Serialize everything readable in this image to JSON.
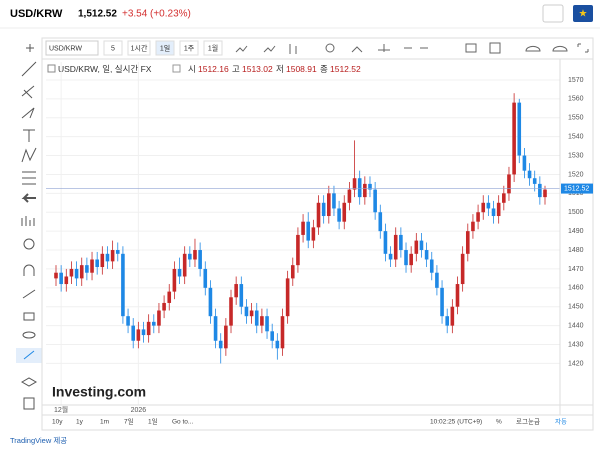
{
  "header": {
    "symbol": "USD/KRW",
    "price": "1,512.52",
    "change": "+3.54",
    "change_pct": "(+0.23%)"
  },
  "toolbar": {
    "symbol": "USD/KRW",
    "intervals": [
      "5",
      "1시간",
      "1일",
      "1주",
      "1월"
    ]
  },
  "bottom_bar": {
    "ranges": [
      "10y",
      "1y",
      "1m",
      "7일",
      "1일"
    ],
    "goto": "Go to...",
    "time": "10:02:25 (UTC+9)",
    "percent": "%",
    "log": "로그눈금",
    "auto": "자동"
  },
  "footer": "TradingView 제공",
  "watermark": "Investing.com",
  "chart_data": {
    "type": "candlestick",
    "title": "USD/KRW, 일, 실시간 FX",
    "legend": [
      {
        "label": "시",
        "value": "1512.16"
      },
      {
        "label": "고",
        "value": "1513.02"
      },
      {
        "label": "저",
        "value": "1508.91"
      },
      {
        "label": "종",
        "value": "1512.52"
      }
    ],
    "categories": [
      null,
      "12월",
      null,
      null,
      null,
      null,
      null,
      null,
      null,
      null,
      null,
      null,
      null,
      null,
      null,
      null,
      "2026",
      null,
      null,
      null,
      null,
      null,
      null,
      null,
      null,
      null,
      null,
      null,
      null,
      null,
      null,
      null,
      null,
      null,
      null,
      null,
      null,
      null,
      null,
      null,
      null,
      null,
      null,
      null,
      null,
      null,
      null,
      null,
      null,
      null,
      null,
      null,
      null,
      null,
      null,
      null,
      null,
      null,
      null,
      null,
      null,
      null,
      null,
      null,
      null,
      null,
      null,
      null,
      null,
      null,
      null,
      null,
      null,
      null,
      null,
      null,
      null,
      null,
      null,
      null,
      null,
      null,
      null,
      null,
      null,
      null,
      null,
      null,
      null,
      null,
      null,
      null,
      null,
      null,
      null,
      null
    ],
    "open": [
      1465,
      1468,
      1462,
      1466,
      1470,
      1465,
      1472,
      1468,
      1475,
      1471,
      1478,
      1474,
      1480,
      1478,
      1445,
      1440,
      1432,
      1438,
      1435,
      1442,
      1440,
      1448,
      1452,
      1458,
      1470,
      1466,
      1478,
      1475,
      1480,
      1470,
      1460,
      1445,
      1432,
      1428,
      1440,
      1455,
      1462,
      1450,
      1445,
      1448,
      1440,
      1445,
      1437,
      1432,
      1428,
      1445,
      1465,
      1472,
      1488,
      1495,
      1485,
      1492,
      1505,
      1498,
      1510,
      1502,
      1495,
      1505,
      1512,
      1518,
      1508,
      1515,
      1512,
      1500,
      1490,
      1478,
      1475,
      1488,
      1480,
      1472,
      1478,
      1485,
      1480,
      1475,
      1468,
      1460,
      1445,
      1440,
      1450,
      1462,
      1478,
      1490,
      1495,
      1500,
      1505,
      1502,
      1498,
      1505,
      1510,
      1520,
      1558,
      1530,
      1522,
      1518,
      1515,
      1508
    ],
    "high": [
      1472,
      1472,
      1470,
      1474,
      1474,
      1476,
      1476,
      1479,
      1479,
      1482,
      1482,
      1485,
      1484,
      1482,
      1449,
      1444,
      1442,
      1442,
      1446,
      1446,
      1452,
      1456,
      1462,
      1474,
      1476,
      1482,
      1482,
      1486,
      1484,
      1474,
      1464,
      1449,
      1436,
      1444,
      1459,
      1466,
      1466,
      1454,
      1452,
      1452,
      1449,
      1449,
      1441,
      1436,
      1449,
      1469,
      1476,
      1492,
      1499,
      1500,
      1496,
      1509,
      1509,
      1514,
      1514,
      1506,
      1509,
      1516,
      1538,
      1522,
      1519,
      1519,
      1516,
      1504,
      1494,
      1482,
      1492,
      1492,
      1484,
      1482,
      1489,
      1489,
      1484,
      1479,
      1472,
      1464,
      1449,
      1454,
      1466,
      1482,
      1494,
      1499,
      1504,
      1509,
      1509,
      1506,
      1509,
      1514,
      1524,
      1563,
      1560,
      1534,
      1526,
      1522,
      1519,
      1514
    ],
    "low": [
      1461,
      1458,
      1458,
      1462,
      1461,
      1461,
      1464,
      1464,
      1467,
      1467,
      1470,
      1470,
      1474,
      1441,
      1436,
      1428,
      1428,
      1431,
      1431,
      1436,
      1436,
      1444,
      1448,
      1454,
      1462,
      1462,
      1471,
      1471,
      1466,
      1456,
      1441,
      1428,
      1420,
      1424,
      1436,
      1451,
      1446,
      1441,
      1441,
      1436,
      1436,
      1433,
      1428,
      1422,
      1424,
      1441,
      1461,
      1468,
      1484,
      1481,
      1481,
      1488,
      1494,
      1494,
      1498,
      1491,
      1491,
      1501,
      1508,
      1504,
      1504,
      1508,
      1496,
      1486,
      1474,
      1471,
      1471,
      1476,
      1468,
      1468,
      1474,
      1476,
      1471,
      1464,
      1456,
      1441,
      1436,
      1436,
      1446,
      1458,
      1474,
      1486,
      1491,
      1496,
      1498,
      1494,
      1494,
      1501,
      1506,
      1516,
      1526,
      1518,
      1514,
      1511,
      1504,
      1504
    ],
    "close": [
      1468,
      1462,
      1466,
      1470,
      1465,
      1472,
      1468,
      1475,
      1471,
      1478,
      1474,
      1480,
      1478,
      1445,
      1440,
      1432,
      1438,
      1435,
      1442,
      1440,
      1448,
      1452,
      1458,
      1470,
      1466,
      1478,
      1475,
      1480,
      1470,
      1460,
      1445,
      1432,
      1428,
      1440,
      1455,
      1462,
      1450,
      1445,
      1448,
      1440,
      1445,
      1437,
      1432,
      1428,
      1445,
      1465,
      1472,
      1488,
      1495,
      1485,
      1492,
      1505,
      1498,
      1510,
      1502,
      1495,
      1505,
      1512,
      1518,
      1508,
      1515,
      1512,
      1500,
      1490,
      1478,
      1475,
      1488,
      1480,
      1472,
      1478,
      1485,
      1480,
      1475,
      1468,
      1460,
      1445,
      1440,
      1450,
      1462,
      1478,
      1490,
      1495,
      1500,
      1505,
      1502,
      1498,
      1505,
      1510,
      1520,
      1558,
      1530,
      1522,
      1518,
      1515,
      1508,
      1512
    ],
    "up_color": "#c62828",
    "down_color": "#1e88e5",
    "last": 1512.52,
    "ylim": [
      1398,
      1579.5
    ],
    "yticks": [
      1420,
      1430,
      1440,
      1450,
      1460,
      1470,
      1480,
      1490,
      1500,
      1510,
      1520,
      1530,
      1540,
      1550,
      1560,
      1570
    ]
  }
}
